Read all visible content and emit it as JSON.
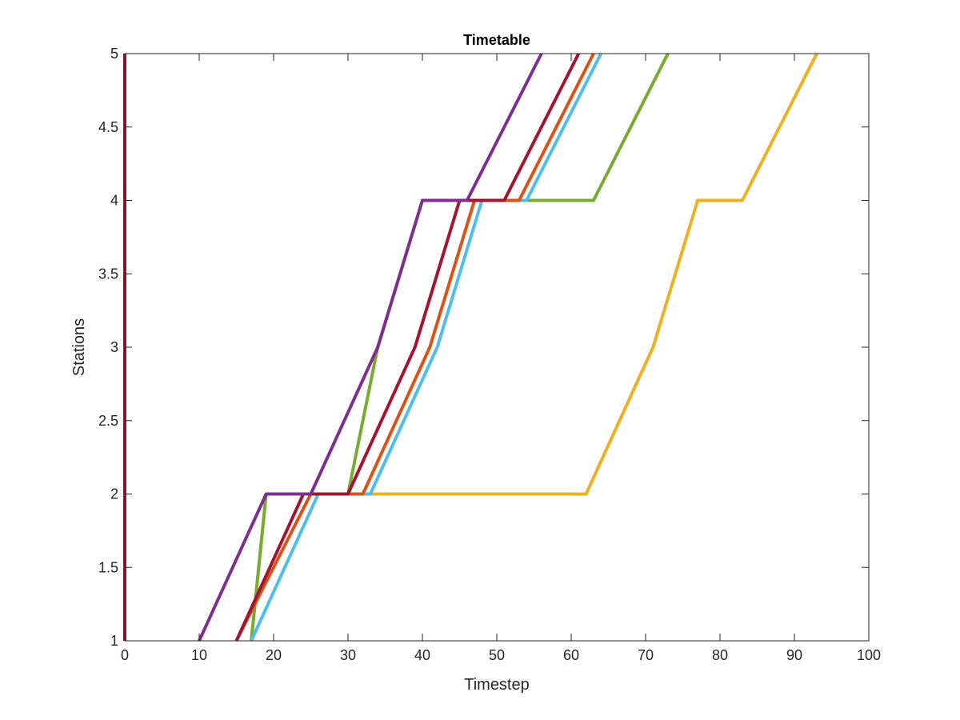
{
  "chart_data": {
    "type": "line",
    "title": "Timetable",
    "xlabel": "Timestep",
    "ylabel": "Stations",
    "xlim": [
      0,
      100
    ],
    "ylim": [
      1,
      5
    ],
    "xticks": [
      0,
      10,
      20,
      30,
      40,
      50,
      60,
      70,
      80,
      90,
      100
    ],
    "xtick_labels": [
      "0",
      "10",
      "20",
      "30",
      "40",
      "50",
      "60",
      "70",
      "80",
      "90",
      "100"
    ],
    "yticks": [
      1,
      1.5,
      2,
      2.5,
      3,
      3.5,
      4,
      4.5,
      5
    ],
    "ytick_labels": [
      "1",
      "1.5",
      "2",
      "2.5",
      "3",
      "3.5",
      "4",
      "4.5",
      "5"
    ],
    "grid": false,
    "box": true,
    "series": [
      {
        "color": "#EDB120",
        "points": [
          [
            17,
            1
          ],
          [
            19,
            2
          ],
          [
            62,
            2
          ],
          [
            71,
            3
          ],
          [
            77,
            4
          ],
          [
            83,
            4
          ],
          [
            93,
            5
          ]
        ]
      },
      {
        "color": "#77AC30",
        "points": [
          [
            17,
            1
          ],
          [
            19,
            2
          ],
          [
            30,
            2
          ],
          [
            34,
            3
          ],
          [
            40,
            4
          ],
          [
            63,
            4
          ],
          [
            73,
            5
          ]
        ]
      },
      {
        "color": "#4DBEEE",
        "points": [
          [
            17,
            1
          ],
          [
            26,
            2
          ],
          [
            33,
            2
          ],
          [
            42,
            3
          ],
          [
            48,
            4
          ],
          [
            54,
            4
          ],
          [
            64,
            5
          ]
        ]
      },
      {
        "color": "#D95319",
        "points": [
          [
            15,
            1
          ],
          [
            25,
            2
          ],
          [
            32,
            2
          ],
          [
            41,
            3
          ],
          [
            47,
            4
          ],
          [
            53,
            4
          ],
          [
            63,
            5
          ]
        ]
      },
      {
        "color": "#A2142F",
        "points": [
          [
            15,
            1
          ],
          [
            24,
            2
          ],
          [
            30,
            2
          ],
          [
            39,
            3
          ],
          [
            45,
            4
          ],
          [
            51,
            4
          ],
          [
            61,
            5
          ]
        ]
      },
      {
        "color": "#7E2F8E",
        "points": [
          [
            10,
            1
          ],
          [
            19,
            2
          ],
          [
            25,
            2
          ],
          [
            34,
            3
          ],
          [
            40,
            4
          ],
          [
            46,
            4
          ],
          [
            56,
            5
          ]
        ]
      },
      {
        "color": "#A2142F",
        "points": [
          [
            0,
            1
          ],
          [
            0,
            5
          ]
        ]
      }
    ]
  }
}
